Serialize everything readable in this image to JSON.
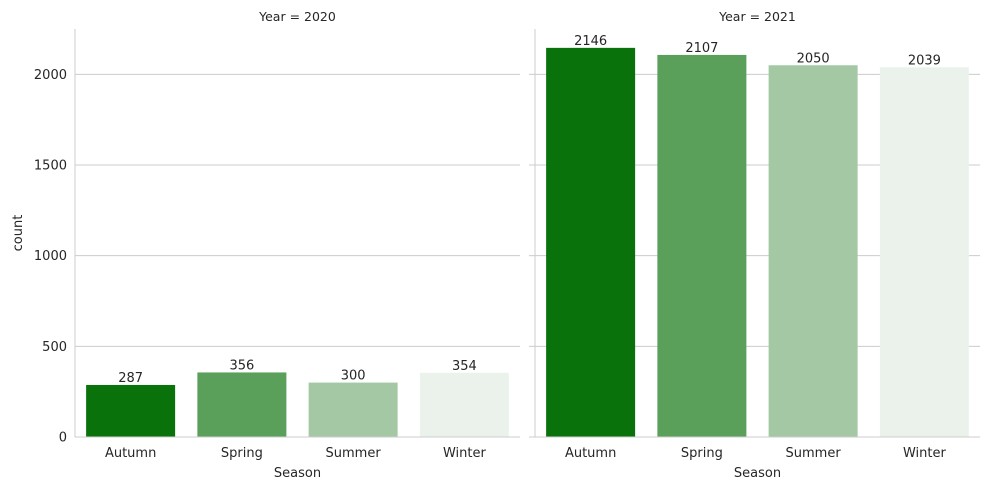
{
  "chart_data": {
    "type": "bar",
    "ylabel": "count",
    "ylim": [
      0,
      2250
    ],
    "yticks": [
      0,
      500,
      1000,
      1500,
      2000
    ],
    "grid": "horizontal",
    "categories": [
      "Autumn",
      "Spring",
      "Summer",
      "Winter"
    ],
    "colors": [
      "#0a720a",
      "#5a9f5a",
      "#a3c8a3",
      "#ebf2eb"
    ],
    "panels": [
      {
        "title": "Year = 2020",
        "xlabel": "Season",
        "values": [
          287,
          356,
          300,
          354
        ],
        "labels": [
          "287",
          "356",
          "300",
          "354"
        ]
      },
      {
        "title": "Year = 2021",
        "xlabel": "Season",
        "values": [
          2146,
          2107,
          2050,
          2039
        ],
        "labels": [
          "2146",
          "2107",
          "2050",
          "2039"
        ]
      }
    ]
  }
}
